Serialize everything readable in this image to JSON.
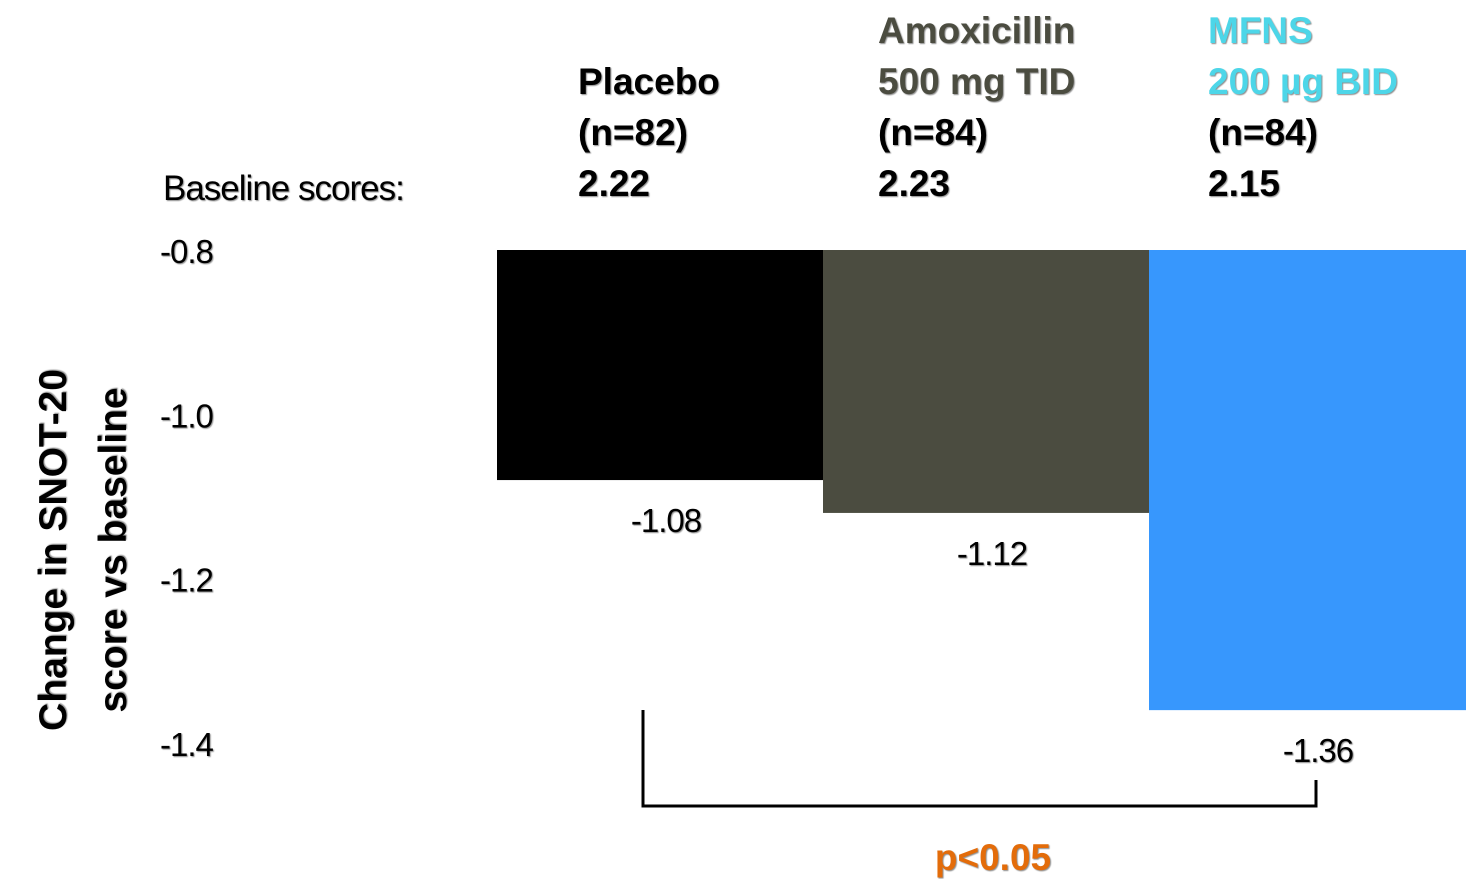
{
  "chart_data": {
    "type": "bar",
    "ylabel": "Change in SNOT-20 score vs baseline",
    "ylabel_lines": [
      "Change in SNOT-20",
      "score vs baseline"
    ],
    "ylim": [
      -0.8,
      -1.4
    ],
    "yticks": [
      -0.8,
      -1.0,
      -1.2,
      -1.4
    ],
    "ytick_labels": [
      "-0.8",
      "-1.0",
      "-1.2",
      "-1.4"
    ],
    "baseline_caption": "Baseline scores:",
    "categories": [
      {
        "label_lines": [
          "Placebo",
          "(n=82)"
        ],
        "baseline": "2.22",
        "value": -1.08,
        "value_label": "-1.08",
        "color": "#000000",
        "label_color": "#000000"
      },
      {
        "label_lines": [
          "Amoxicillin",
          "500 mg TID",
          "(n=84)"
        ],
        "baseline": "2.23",
        "value": -1.12,
        "value_label": "-1.12",
        "color": "#4b4c40",
        "label_color": "#4b4c40"
      },
      {
        "label_lines": [
          "MFNS",
          "200 µg BID",
          "(n=84)"
        ],
        "baseline": "2.15",
        "value": -1.36,
        "value_label": "-1.36",
        "color": "#3797fd",
        "label_color": "#4dd6e8"
      }
    ],
    "grid": false,
    "annotation": {
      "text": "p<0.05",
      "color": "#e36c0a",
      "from_category": 0,
      "to_category": 2
    }
  }
}
